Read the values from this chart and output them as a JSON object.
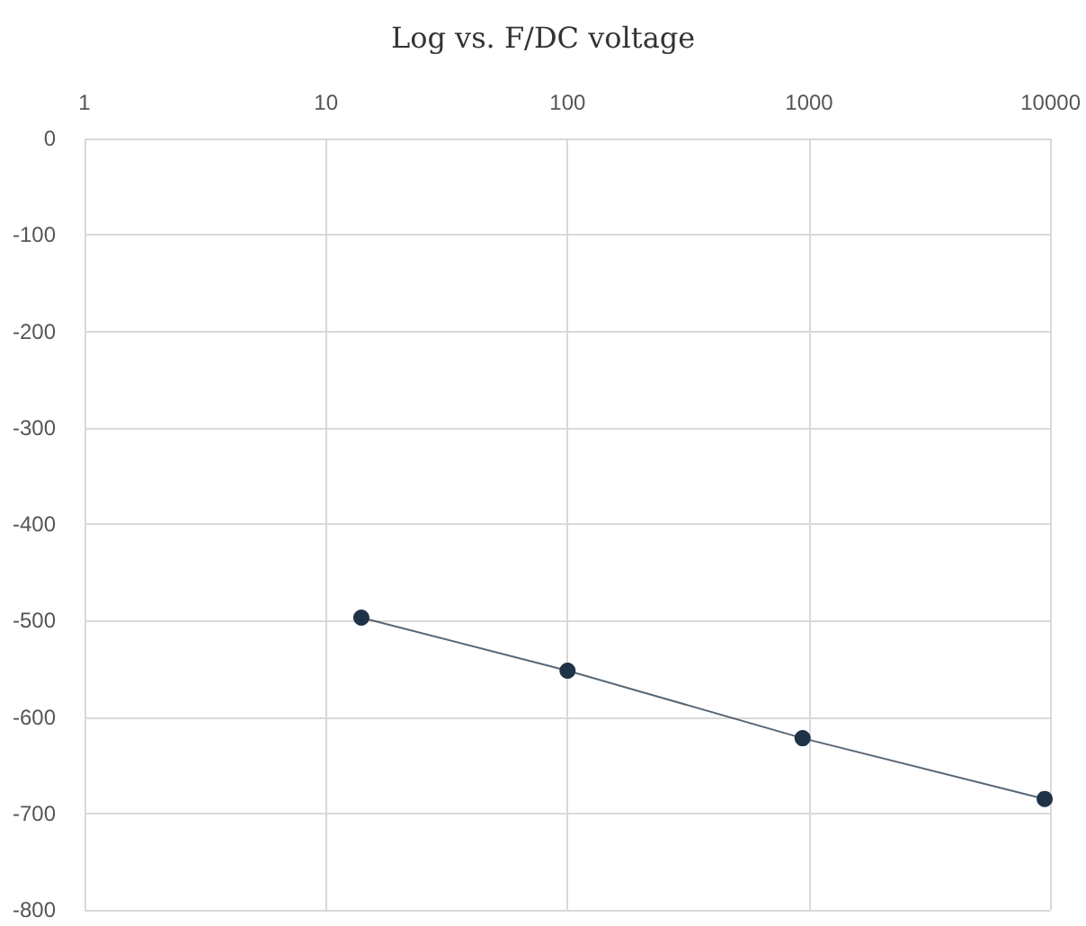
{
  "chart_data": {
    "type": "line",
    "title": "Log vs. F/DC voltage",
    "x": [
      14,
      100,
      940,
      9450
    ],
    "series": [
      {
        "color": "#1f3347",
        "values": [
          -497,
          -552,
          -622,
          -685
        ]
      }
    ],
    "log": "x",
    "xlim": [
      1,
      10000
    ],
    "xticks": [
      1,
      10,
      100,
      1000,
      10000
    ],
    "ylim": [
      -800,
      0
    ],
    "yticks": [
      -800,
      -700,
      -600,
      -500,
      -400,
      -300,
      -200,
      -100,
      0
    ],
    "grid": true,
    "marker": "circle",
    "line_style": "solid"
  }
}
